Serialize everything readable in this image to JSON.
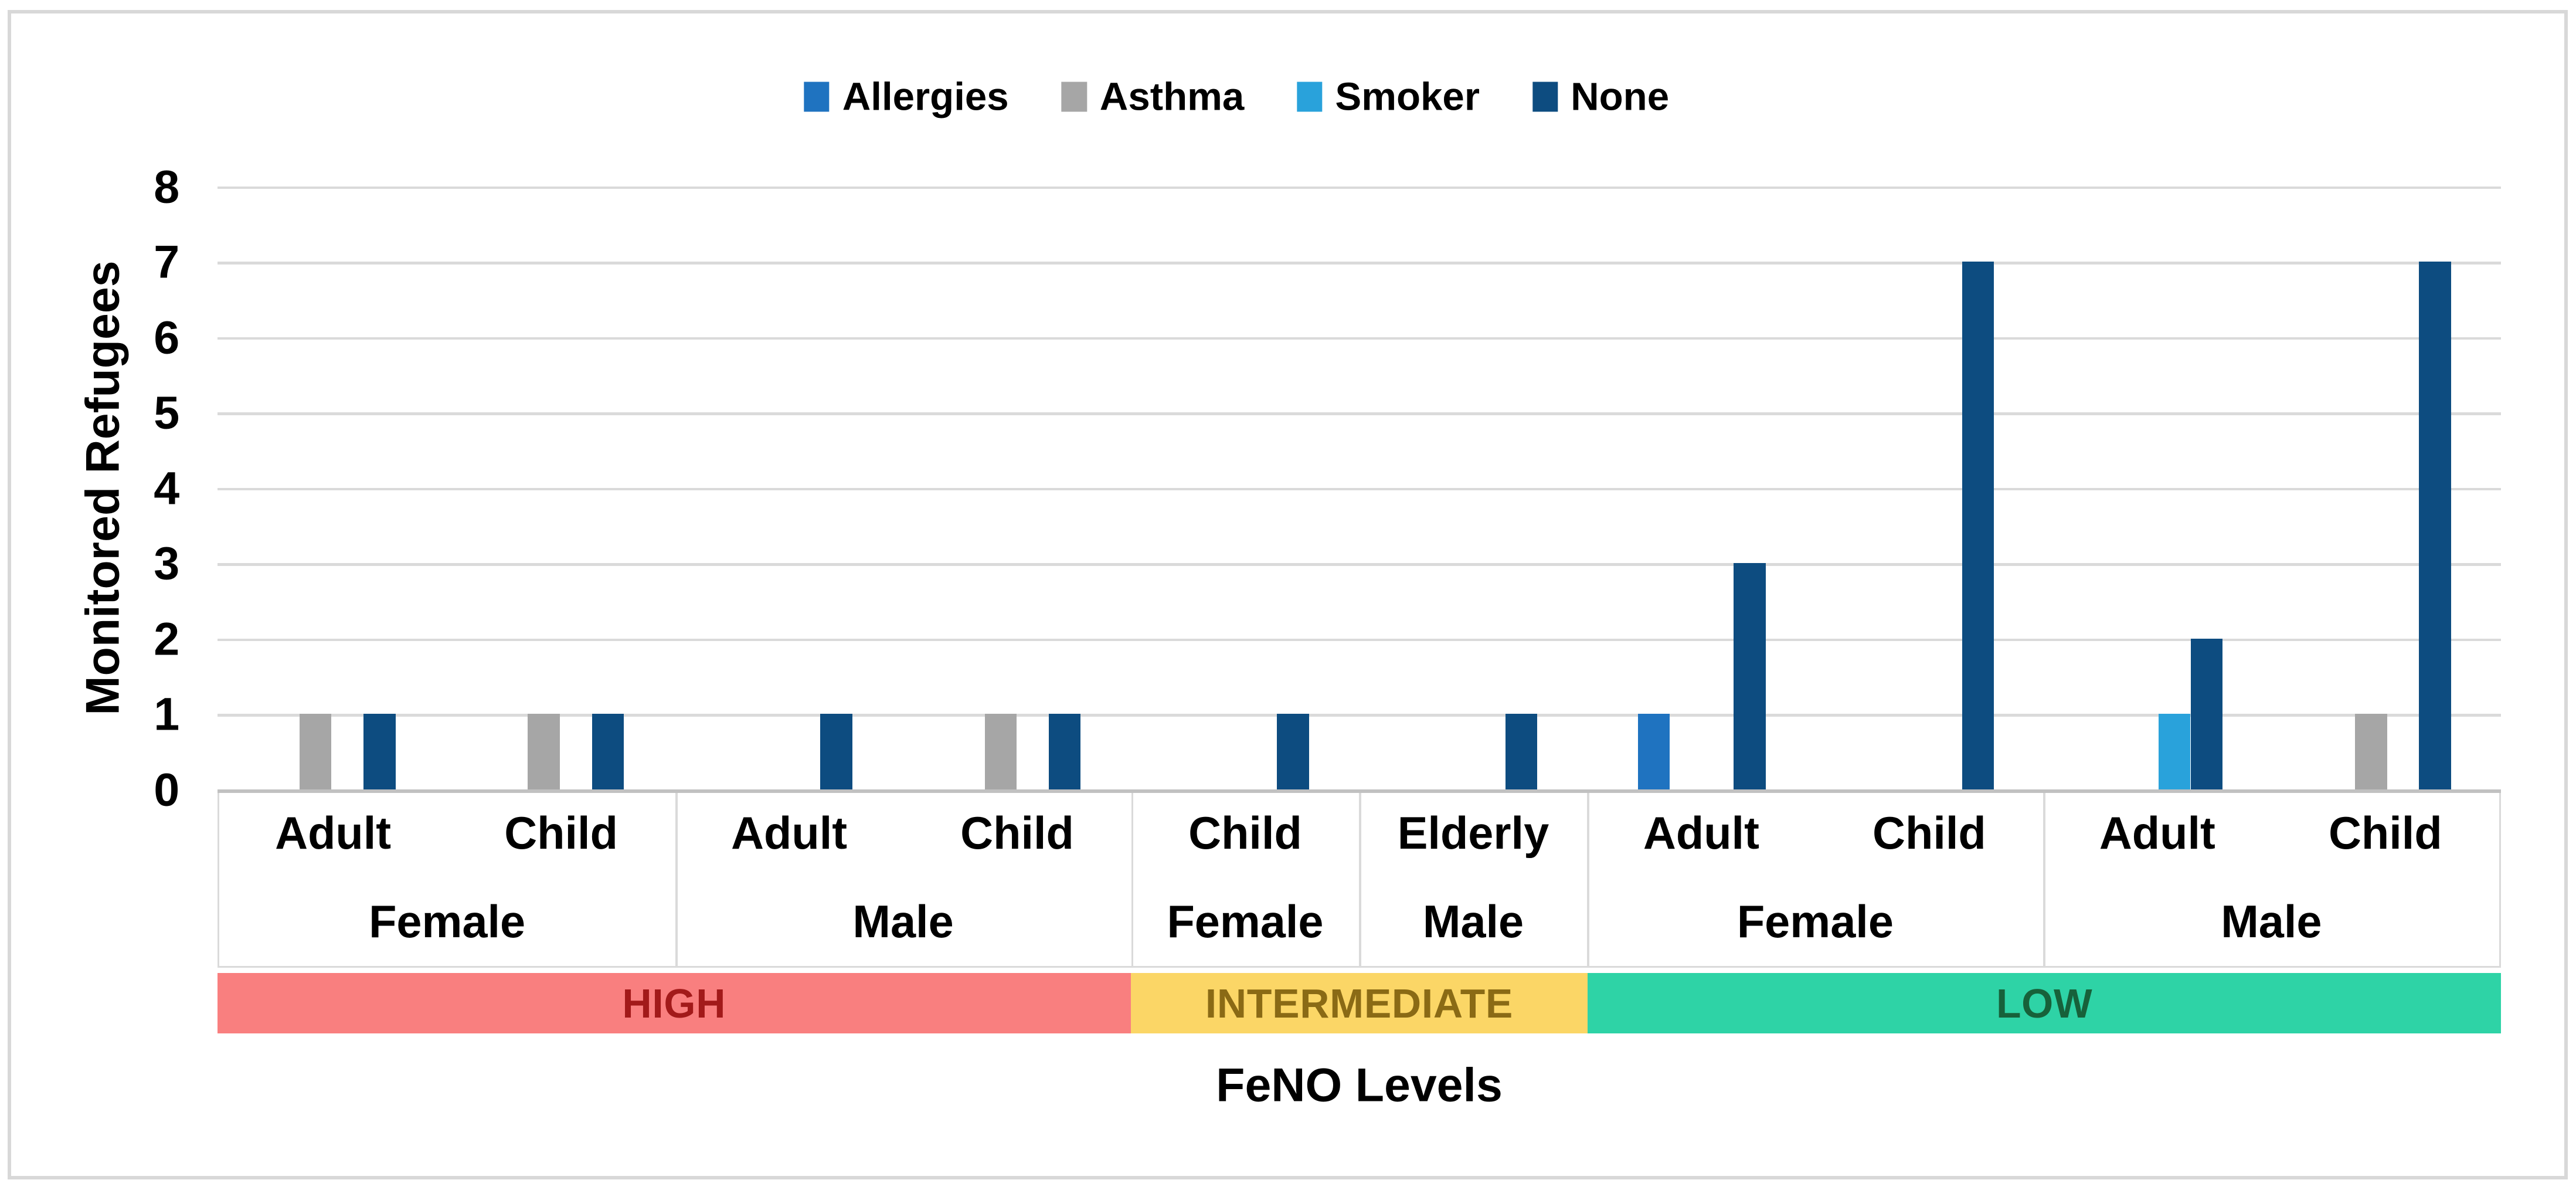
{
  "figure": {
    "background": "#FFFFFF",
    "border_color": "#D8D8D8"
  },
  "legend": {
    "items": [
      {
        "label": "Allergies",
        "color": "#1F73C0"
      },
      {
        "label": "Asthma",
        "color": "#A6A6A6"
      },
      {
        "label": "Smoker",
        "color": "#29A2DB"
      },
      {
        "label": "None",
        "color": "#0D4C80"
      }
    ]
  },
  "chart_data": {
    "type": "bar",
    "title": "",
    "xlabel": "FeNO Levels",
    "ylabel": "Monitored Refugees",
    "ylim": [
      0,
      8
    ],
    "yticks": [
      0,
      1,
      2,
      3,
      4,
      5,
      6,
      7,
      8
    ],
    "grid": "horizontal",
    "legend_position": "top-center",
    "series": [
      {
        "name": "Allergies",
        "color": "#1F73C0"
      },
      {
        "name": "Asthma",
        "color": "#A6A6A6"
      },
      {
        "name": "Smoker",
        "color": "#29A2DB"
      },
      {
        "name": "None",
        "color": "#0D4C80"
      }
    ],
    "series_value_order": [
      "Allergies",
      "Asthma",
      "Smoker",
      "None"
    ],
    "categories": [
      {
        "band": "HIGH",
        "group": "Female",
        "age": "Adult",
        "values": [
          0,
          1,
          0,
          1
        ]
      },
      {
        "band": "HIGH",
        "group": "Female",
        "age": "Child",
        "values": [
          0,
          1,
          0,
          1
        ]
      },
      {
        "band": "HIGH",
        "group": "Male",
        "age": "Adult",
        "values": [
          0,
          0,
          0,
          1
        ]
      },
      {
        "band": "HIGH",
        "group": "Male",
        "age": "Child",
        "values": [
          0,
          1,
          0,
          1
        ]
      },
      {
        "band": "INTERMEDIATE",
        "group": "Female",
        "age": "Child",
        "values": [
          0,
          0,
          0,
          1
        ]
      },
      {
        "band": "INTERMEDIATE",
        "group": "Male",
        "age": "Elderly",
        "values": [
          0,
          0,
          0,
          1
        ]
      },
      {
        "band": "LOW",
        "group": "Female",
        "age": "Adult",
        "values": [
          1,
          0,
          0,
          3
        ]
      },
      {
        "band": "LOW",
        "group": "Female",
        "age": "Child",
        "values": [
          0,
          0,
          0,
          7
        ]
      },
      {
        "band": "LOW",
        "group": "Male",
        "age": "Adult",
        "values": [
          0,
          0,
          1,
          2
        ]
      },
      {
        "band": "LOW",
        "group": "Male",
        "age": "Child",
        "values": [
          0,
          1,
          0,
          7
        ]
      }
    ],
    "bands": [
      {
        "label": "HIGH",
        "bg": "#F97F7F",
        "text_color": "#A21A1A"
      },
      {
        "label": "INTERMEDIATE",
        "bg": "#FBD666",
        "text_color": "#8A6A15"
      },
      {
        "label": "LOW",
        "bg": "#2ED3A6",
        "text_color": "#17613A"
      }
    ]
  }
}
